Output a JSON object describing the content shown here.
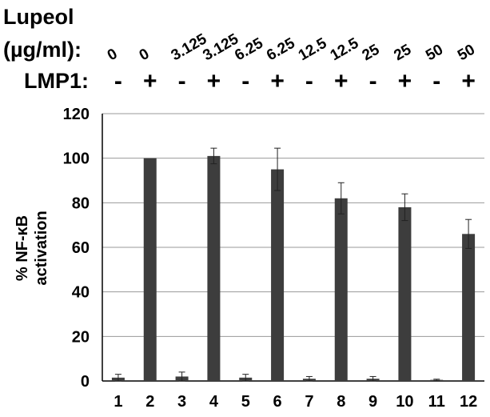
{
  "chart_data": {
    "type": "bar",
    "ylabel": "% NF-κB activation",
    "ylabel_lines": [
      "% NF-κB",
      "activation"
    ],
    "xlabel": "",
    "ylim": [
      0,
      120
    ],
    "yticks": [
      0,
      20,
      40,
      60,
      80,
      100,
      120
    ],
    "grid": true,
    "categories": [
      "1",
      "2",
      "3",
      "4",
      "5",
      "6",
      "7",
      "8",
      "9",
      "10",
      "11",
      "12"
    ],
    "values": [
      1.5,
      100,
      2,
      101,
      1.5,
      95,
      1,
      82,
      1,
      78,
      0.5,
      66
    ],
    "errors": [
      1.5,
      0,
      2,
      3.5,
      1.5,
      9.5,
      1,
      7,
      1,
      6,
      0.3,
      6.5
    ],
    "bar_color": "#3d3d3d",
    "treatments": {
      "lupeol_label_lines": [
        "Lupeol",
        "(µg/ml):"
      ],
      "lupeol_values": [
        "0",
        "0",
        "3.125",
        "3.125",
        "6.25",
        "6.25",
        "12.5",
        "12.5",
        "25",
        "25",
        "50",
        "50"
      ],
      "lmp1_label": "LMP1:",
      "lmp1_values": [
        "-",
        "+",
        "-",
        "+",
        "-",
        "+",
        "-",
        "+",
        "-",
        "+",
        "-",
        "+"
      ]
    }
  }
}
